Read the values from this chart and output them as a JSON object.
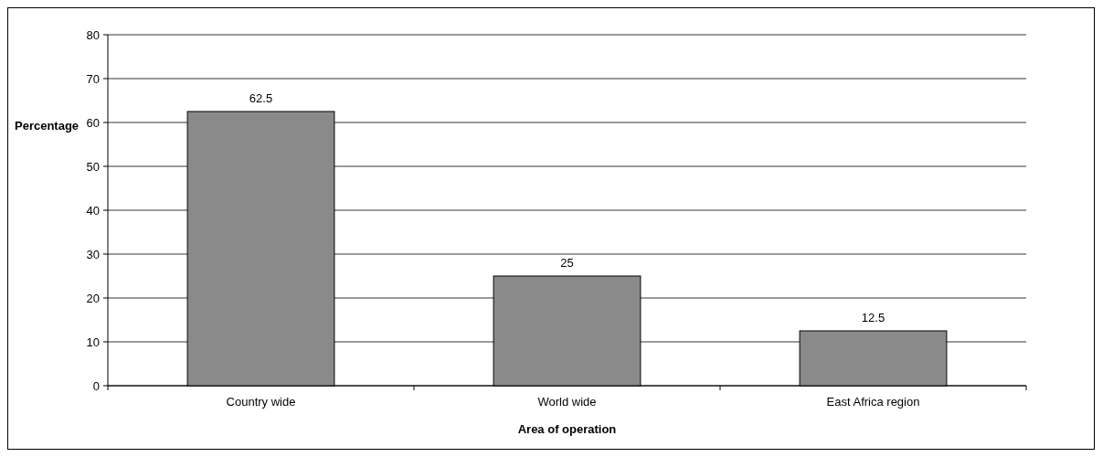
{
  "chart_data": {
    "type": "bar",
    "xlabel": "Area of operation",
    "ylabel": "Percentage",
    "categories": [
      "Country wide",
      "World wide",
      "East Africa region"
    ],
    "values": [
      62.5,
      25,
      12.5
    ],
    "color": "#8a8a8a",
    "ylim": [
      0,
      80
    ],
    "yticks": [
      0,
      10,
      20,
      30,
      40,
      50,
      60,
      70,
      80
    ],
    "grid": "y",
    "data_labels": true
  }
}
